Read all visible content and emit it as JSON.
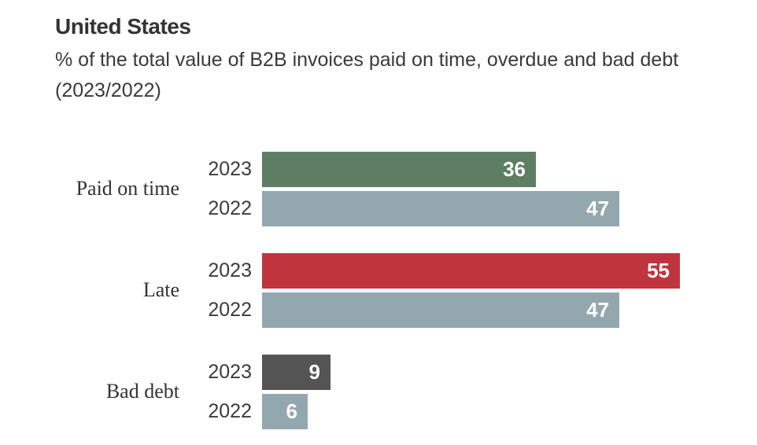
{
  "chart_data": {
    "type": "bar",
    "orientation": "horizontal",
    "title": "United States",
    "subtitle": "% of the total value of B2B invoices paid on time, overdue and bad debt (2023/2022)",
    "categories": [
      "Paid on time",
      "Late",
      "Bad debt"
    ],
    "series": [
      {
        "name": "2023",
        "values": [
          36,
          55,
          9
        ],
        "colors": [
          "#5d7e63",
          "#c0343e",
          "#545454"
        ]
      },
      {
        "name": "2022",
        "values": [
          47,
          47,
          6
        ],
        "colors": [
          "#93a8ae",
          "#93a8ae",
          "#93a8ae"
        ]
      }
    ],
    "xlim": [
      0,
      55.6
    ],
    "axis_visible": false,
    "grid": false,
    "legend": "none",
    "value_labels_position": "inside-end",
    "value_label_color": "#ffffff",
    "text_color": "#333333",
    "background_color": "#ffffff"
  }
}
